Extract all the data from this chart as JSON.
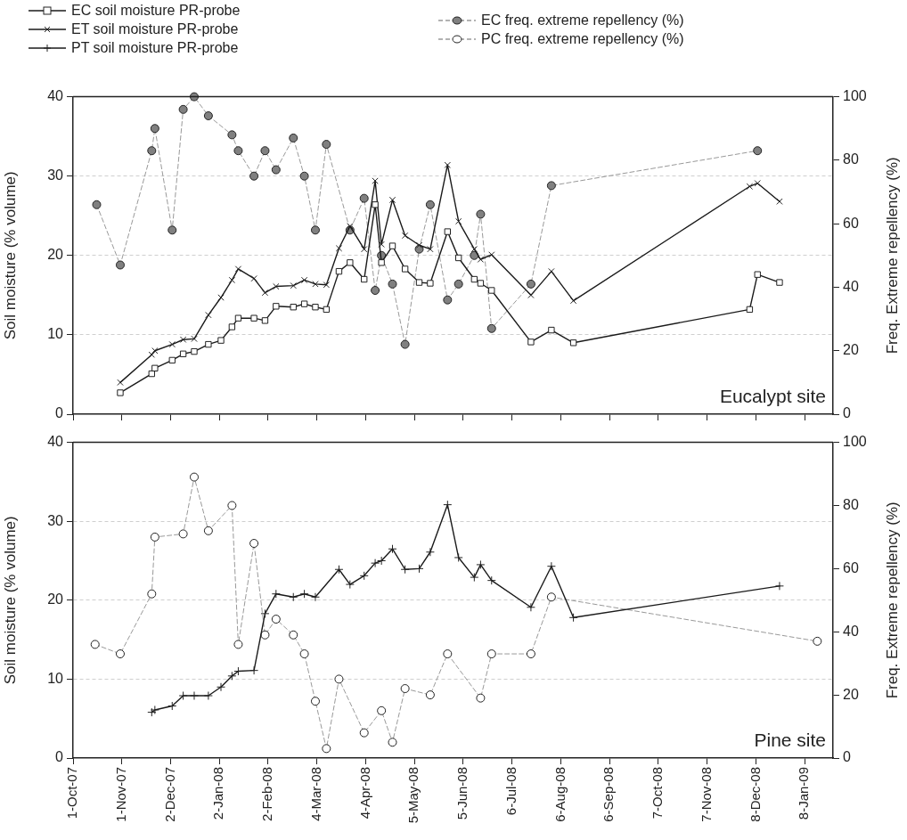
{
  "chart_data": [
    {
      "type": "line",
      "ylabel": "Soil moisture (% volume)",
      "y2label": "Freq. Extreme repellency (%)",
      "annotations": [
        "Eucalypt site"
      ],
      "xlim": [
        "2007-10-01",
        "2009-01-26"
      ],
      "xticks": [
        {
          "value": "2007-10-01",
          "label": null
        },
        {
          "value": "2007-11-01",
          "label": null
        },
        {
          "value": "2007-12-02",
          "label": null
        },
        {
          "value": "2008-01-02",
          "label": null
        },
        {
          "value": "2008-02-02",
          "label": null
        },
        {
          "value": "2008-03-04",
          "label": null
        },
        {
          "value": "2008-04-04",
          "label": null
        },
        {
          "value": "2008-05-05",
          "label": null
        },
        {
          "value": "2008-06-05",
          "label": null
        },
        {
          "value": "2008-07-06",
          "label": null
        },
        {
          "value": "2008-08-06",
          "label": null
        },
        {
          "value": "2008-09-06",
          "label": null
        },
        {
          "value": "2008-10-07",
          "label": null
        },
        {
          "value": "2008-11-07",
          "label": null
        },
        {
          "value": "2008-12-08",
          "label": null
        },
        {
          "value": "2009-01-08",
          "label": null
        }
      ],
      "ylim": [
        0,
        40
      ],
      "yticks": [
        0,
        10,
        20,
        30,
        40
      ],
      "y2lim": [
        0,
        100
      ],
      "y2ticks": [
        0,
        20,
        40,
        60,
        80,
        100
      ],
      "grid": "y",
      "legend": "top",
      "tick_labels": "y",
      "series": [
        {
          "name": "EC soil moisture PR-probe",
          "color": "#1a1a1a",
          "marker": "square",
          "line_style": "solid",
          "x": [
            "2007-10-31",
            "2007-11-20",
            "2007-11-22",
            "2007-12-03",
            "2007-12-10",
            "2007-12-17",
            "2007-12-26",
            "2008-01-03",
            "2008-01-10",
            "2008-01-14",
            "2008-01-24",
            "2008-01-31",
            "2008-02-07",
            "2008-02-18",
            "2008-02-25",
            "2008-03-03",
            "2008-03-10",
            "2008-03-18",
            "2008-03-25",
            "2008-04-03",
            "2008-04-10",
            "2008-04-14",
            "2008-04-21",
            "2008-04-29",
            "2008-05-08",
            "2008-05-15",
            "2008-05-26",
            "2008-06-02",
            "2008-06-12",
            "2008-06-16",
            "2008-06-23",
            "2008-07-18",
            "2008-07-31",
            "2008-08-14",
            "2008-12-04",
            "2008-12-09",
            "2008-12-23"
          ],
          "values": [
            2.7,
            5.1,
            5.8,
            6.8,
            7.6,
            7.9,
            8.8,
            9.3,
            11.0,
            12.1,
            12.1,
            11.8,
            13.6,
            13.5,
            13.9,
            13.5,
            13.2,
            18.0,
            19.1,
            17.0,
            26.4,
            19.1,
            21.2,
            18.3,
            16.6,
            16.5,
            23.0,
            19.7,
            17.0,
            16.5,
            15.6,
            9.1,
            10.6,
            9.0,
            13.2,
            17.6,
            16.6
          ]
        },
        {
          "name": "ET soil moisture PR-probe",
          "color": "#1a1a1a",
          "marker": "x",
          "line_style": "solid",
          "x": [
            "2007-10-31",
            "2007-11-20",
            "2007-11-22",
            "2007-12-03",
            "2007-12-10",
            "2007-12-17",
            "2007-12-26",
            "2008-01-03",
            "2008-01-10",
            "2008-01-14",
            "2008-01-24",
            "2008-01-31",
            "2008-02-07",
            "2008-02-18",
            "2008-02-25",
            "2008-03-03",
            "2008-03-10",
            "2008-03-18",
            "2008-03-25",
            "2008-04-03",
            "2008-04-10",
            "2008-04-14",
            "2008-04-21",
            "2008-04-29",
            "2008-05-08",
            "2008-05-15",
            "2008-05-26",
            "2008-06-02",
            "2008-06-12",
            "2008-06-16",
            "2008-06-23",
            "2008-07-18",
            "2008-07-31",
            "2008-08-14",
            "2008-12-04",
            "2008-12-09",
            "2008-12-23"
          ],
          "values": [
            4.0,
            7.5,
            8.0,
            8.8,
            9.4,
            9.5,
            12.5,
            14.7,
            16.9,
            18.3,
            17.1,
            15.3,
            16.1,
            16.2,
            16.9,
            16.4,
            16.3,
            20.9,
            23.7,
            20.8,
            29.4,
            21.4,
            27.0,
            22.5,
            21.3,
            20.8,
            31.4,
            24.3,
            20.8,
            19.5,
            20.1,
            15.0,
            18.0,
            14.3,
            28.7,
            29.1,
            26.8
          ]
        },
        {
          "name": "EC freq. extreme repellency (%)",
          "color": "#999999",
          "colors": [
            "#808080",
            "#808080",
            "#808080",
            "#808080",
            "#808080",
            "#808080",
            "#808080",
            "#808080",
            "#808080",
            "#808080",
            "#808080",
            "#808080",
            "#808080",
            "#808080",
            "#808080",
            "#808080",
            "#808080",
            "#808080",
            "#808080",
            "#808080",
            "#808080",
            "#808080",
            "#808080",
            "#808080",
            "#808080",
            "#808080",
            "#808080",
            "#808080",
            "#808080",
            "#808080",
            "#808080",
            "#808080",
            "#808080"
          ],
          "marker": "circle",
          "line_style": "dashed",
          "axis": "y2",
          "x": [
            "2007-10-16",
            "2007-10-31",
            "2007-11-20",
            "2007-11-22",
            "2007-12-03",
            "2007-12-10",
            "2007-12-17",
            "2007-12-26",
            "2008-01-10",
            "2008-01-14",
            "2008-01-24",
            "2008-01-31",
            "2008-02-07",
            "2008-02-18",
            "2008-02-25",
            "2008-03-03",
            "2008-03-10",
            "2008-03-25",
            "2008-04-03",
            "2008-04-10",
            "2008-04-14",
            "2008-04-21",
            "2008-04-29",
            "2008-05-08",
            "2008-05-15",
            "2008-05-26",
            "2008-06-02",
            "2008-06-12",
            "2008-06-16",
            "2008-06-23",
            "2008-07-18",
            "2008-07-31",
            "2008-12-09"
          ],
          "values": [
            66,
            47,
            83,
            90,
            58,
            96,
            100,
            94,
            88,
            83,
            75,
            83,
            77,
            87,
            75,
            58,
            85,
            58,
            68,
            39,
            50,
            41,
            22,
            52,
            66,
            36,
            41,
            50,
            63,
            27,
            41,
            72,
            83
          ]
        }
      ]
    },
    {
      "type": "line",
      "ylabel": "Soil moisture (% volume)",
      "y2label": "Freq. Extreme repellency (%)",
      "annotations": [
        "Pine site"
      ],
      "xlim": [
        "2007-10-01",
        "2009-01-26"
      ],
      "xticks": [
        {
          "value": "2007-10-01",
          "label": "1-Oct-07"
        },
        {
          "value": "2007-11-01",
          "label": "1-Nov-07"
        },
        {
          "value": "2007-12-02",
          "label": "2-Dec-07"
        },
        {
          "value": "2008-01-02",
          "label": "2-Jan-08"
        },
        {
          "value": "2008-02-02",
          "label": "2-Feb-08"
        },
        {
          "value": "2008-03-04",
          "label": "4-Mar-08"
        },
        {
          "value": "2008-04-04",
          "label": "4-Apr-08"
        },
        {
          "value": "2008-05-05",
          "label": "5-May-08"
        },
        {
          "value": "2008-06-05",
          "label": "5-Jun-08"
        },
        {
          "value": "2008-07-06",
          "label": "6-Jul-08"
        },
        {
          "value": "2008-08-06",
          "label": "6-Aug-08"
        },
        {
          "value": "2008-09-06",
          "label": "6-Sep-08"
        },
        {
          "value": "2008-10-07",
          "label": "7-Oct-08"
        },
        {
          "value": "2008-11-07",
          "label": "7-Nov-08"
        },
        {
          "value": "2008-12-08",
          "label": "8-Dec-08"
        },
        {
          "value": "2009-01-08",
          "label": "8-Jan-09"
        }
      ],
      "ylim": [
        0,
        40
      ],
      "yticks": [
        0,
        10,
        20,
        30,
        40
      ],
      "y2lim": [
        0,
        100
      ],
      "y2ticks": [
        0,
        20,
        40,
        60,
        80,
        100
      ],
      "grid": "y",
      "legend": "top",
      "series": [
        {
          "name": "PT soil moisture PR-probe",
          "color": "#1a1a1a",
          "marker": "cross",
          "line_style": "solid",
          "x": [
            "2007-11-20",
            "2007-11-22",
            "2007-12-03",
            "2007-12-10",
            "2007-12-17",
            "2007-12-26",
            "2008-01-03",
            "2008-01-10",
            "2008-01-14",
            "2008-01-24",
            "2008-01-31",
            "2008-02-07",
            "2008-02-18",
            "2008-02-25",
            "2008-03-03",
            "2008-03-18",
            "2008-03-25",
            "2008-04-03",
            "2008-04-10",
            "2008-04-14",
            "2008-04-21",
            "2008-04-29",
            "2008-05-08",
            "2008-05-15",
            "2008-05-26",
            "2008-06-02",
            "2008-06-12",
            "2008-06-16",
            "2008-06-23",
            "2008-07-18",
            "2008-07-31",
            "2008-08-14",
            "2008-12-23"
          ],
          "values": [
            5.8,
            6.1,
            6.6,
            7.9,
            7.9,
            7.9,
            9.0,
            10.4,
            11.0,
            11.1,
            18.3,
            20.8,
            20.4,
            20.8,
            20.4,
            23.9,
            22.0,
            23.1,
            24.7,
            25.0,
            26.5,
            23.9,
            24.0,
            26.1,
            32.1,
            25.4,
            22.9,
            24.5,
            22.5,
            19.1,
            24.3,
            17.8,
            21.8
          ]
        },
        {
          "name": "PC freq. extreme repellency (%)",
          "color": "#999999",
          "marker": "circle",
          "line_style": "dashed",
          "axis": "y2",
          "x": [
            "2007-10-15",
            "2007-10-31",
            "2007-11-20",
            "2007-11-22",
            "2007-12-10",
            "2007-12-17",
            "2007-12-26",
            "2008-01-10",
            "2008-01-14",
            "2008-01-24",
            "2008-01-31",
            "2008-02-07",
            "2008-02-18",
            "2008-02-25",
            "2008-03-03",
            "2008-03-10",
            "2008-03-18",
            "2008-04-03",
            "2008-04-14",
            "2008-04-21",
            "2008-04-29",
            "2008-05-15",
            "2008-05-26",
            "2008-06-16",
            "2008-06-23",
            "2008-07-18",
            "2008-07-31",
            "2009-01-16"
          ],
          "values": [
            36,
            33,
            52,
            70,
            71,
            89,
            72,
            80,
            36,
            68,
            39,
            44,
            39,
            33,
            18,
            3,
            25,
            8,
            15,
            5,
            22,
            20,
            33,
            19,
            33,
            33,
            51,
            37
          ]
        }
      ]
    }
  ]
}
